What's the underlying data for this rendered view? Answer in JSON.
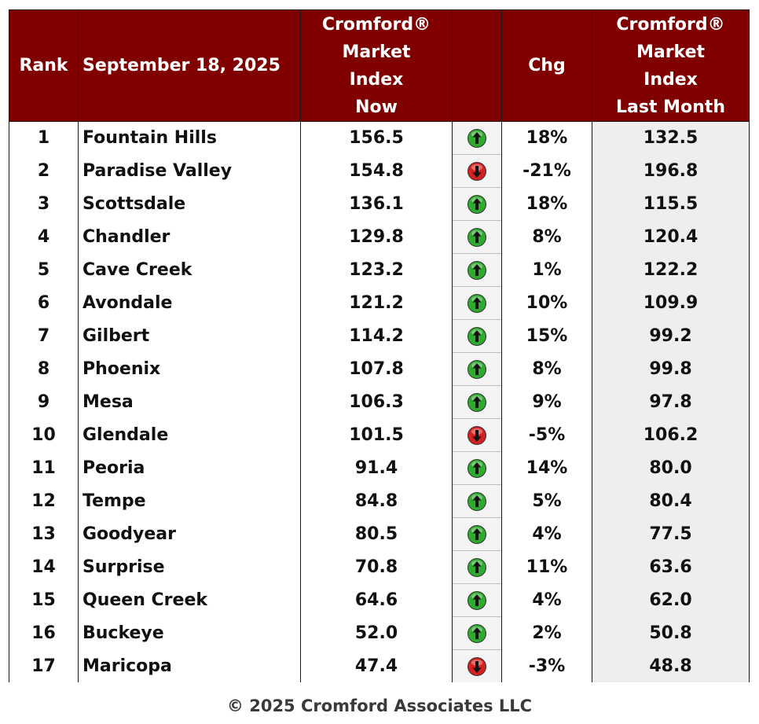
{
  "chart_data": {
    "type": "table",
    "title": "",
    "columns": [
      {
        "key": "rank",
        "label": "Rank"
      },
      {
        "key": "city",
        "label": "September 18, 2025"
      },
      {
        "key": "now",
        "label_lines": [
          "Cromford®",
          "Market",
          "Index",
          "Now"
        ]
      },
      {
        "key": "direction",
        "label": ""
      },
      {
        "key": "chg",
        "label": "Chg"
      },
      {
        "key": "last",
        "label_lines": [
          "Cromford®",
          "Market",
          "Index",
          "Last Month"
        ]
      }
    ],
    "rows": [
      {
        "rank": "1",
        "city": "Fountain Hills",
        "now": "156.5",
        "direction": "up",
        "chg": "18%",
        "last": "132.5"
      },
      {
        "rank": "2",
        "city": "Paradise Valley",
        "now": "154.8",
        "direction": "down",
        "chg": "-21%",
        "last": "196.8"
      },
      {
        "rank": "3",
        "city": "Scottsdale",
        "now": "136.1",
        "direction": "up",
        "chg": "18%",
        "last": "115.5"
      },
      {
        "rank": "4",
        "city": "Chandler",
        "now": "129.8",
        "direction": "up",
        "chg": "8%",
        "last": "120.4"
      },
      {
        "rank": "5",
        "city": "Cave Creek",
        "now": "123.2",
        "direction": "up",
        "chg": "1%",
        "last": "122.2"
      },
      {
        "rank": "6",
        "city": "Avondale",
        "now": "121.2",
        "direction": "up",
        "chg": "10%",
        "last": "109.9"
      },
      {
        "rank": "7",
        "city": "Gilbert",
        "now": "114.2",
        "direction": "up",
        "chg": "15%",
        "last": "99.2"
      },
      {
        "rank": "8",
        "city": "Phoenix",
        "now": "107.8",
        "direction": "up",
        "chg": "8%",
        "last": "99.8"
      },
      {
        "rank": "9",
        "city": "Mesa",
        "now": "106.3",
        "direction": "up",
        "chg": "9%",
        "last": "97.8"
      },
      {
        "rank": "10",
        "city": "Glendale",
        "now": "101.5",
        "direction": "down",
        "chg": "-5%",
        "last": "106.2"
      },
      {
        "rank": "11",
        "city": "Peoria",
        "now": "91.4",
        "direction": "up",
        "chg": "14%",
        "last": "80.0"
      },
      {
        "rank": "12",
        "city": "Tempe",
        "now": "84.8",
        "direction": "up",
        "chg": "5%",
        "last": "80.4"
      },
      {
        "rank": "13",
        "city": "Goodyear",
        "now": "80.5",
        "direction": "up",
        "chg": "4%",
        "last": "77.5"
      },
      {
        "rank": "14",
        "city": "Surprise",
        "now": "70.8",
        "direction": "up",
        "chg": "11%",
        "last": "63.6"
      },
      {
        "rank": "15",
        "city": "Queen Creek",
        "now": "64.6",
        "direction": "up",
        "chg": "4%",
        "last": "62.0"
      },
      {
        "rank": "16",
        "city": "Buckeye",
        "now": "52.0",
        "direction": "up",
        "chg": "2%",
        "last": "50.8"
      },
      {
        "rank": "17",
        "city": "Maricopa",
        "now": "47.4",
        "direction": "down",
        "chg": "-3%",
        "last": "48.8"
      }
    ]
  },
  "colors": {
    "header_bg": "#800000",
    "header_text": "#ffffff",
    "up_arrow": "#2eaa2e",
    "down_arrow": "#d42020"
  },
  "footer": "© 2025 Cromford Associates LLC"
}
